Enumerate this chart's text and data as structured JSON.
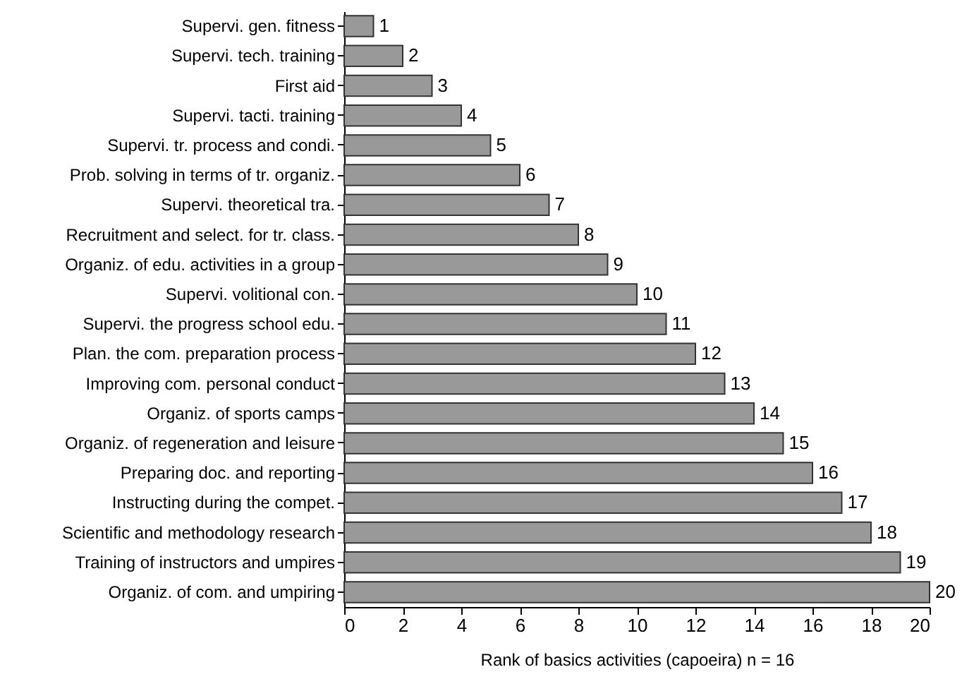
{
  "chart_data": {
    "type": "bar",
    "orientation": "horizontal",
    "xlabel": "Rank of basics activities (capoeira) n = 16",
    "categories": [
      "Supervi. gen. fitness",
      "Supervi. tech. training",
      "First aid",
      "Supervi. tacti. training",
      "Supervi. tr. process and condi.",
      "Prob. solving in terms of tr. organiz.",
      "Supervi. theoretical tra.",
      "Recruitment and select. for tr. class.",
      "Organiz. of edu. activities in a group",
      "Supervi. volitional con.",
      "Supervi. the progress school edu.",
      "Plan. the com. preparation process",
      "Improving com. personal conduct",
      "Organiz. of sports camps",
      "Organiz. of regeneration and leisure",
      "Preparing doc. and reporting",
      "Instructing during the compet.",
      "Scientific and methodology research",
      "Training of instructors and umpires",
      "Organiz. of com. and umpiring"
    ],
    "values": [
      1,
      2,
      3,
      4,
      5,
      6,
      7,
      8,
      9,
      10,
      11,
      12,
      13,
      14,
      15,
      16,
      17,
      18,
      19,
      20
    ],
    "color": "#999999",
    "data_labels": true,
    "xlim": [
      0,
      20
    ],
    "xticks": [
      0,
      2,
      4,
      6,
      8,
      10,
      12,
      14,
      16,
      18,
      20
    ],
    "grid": false
  }
}
